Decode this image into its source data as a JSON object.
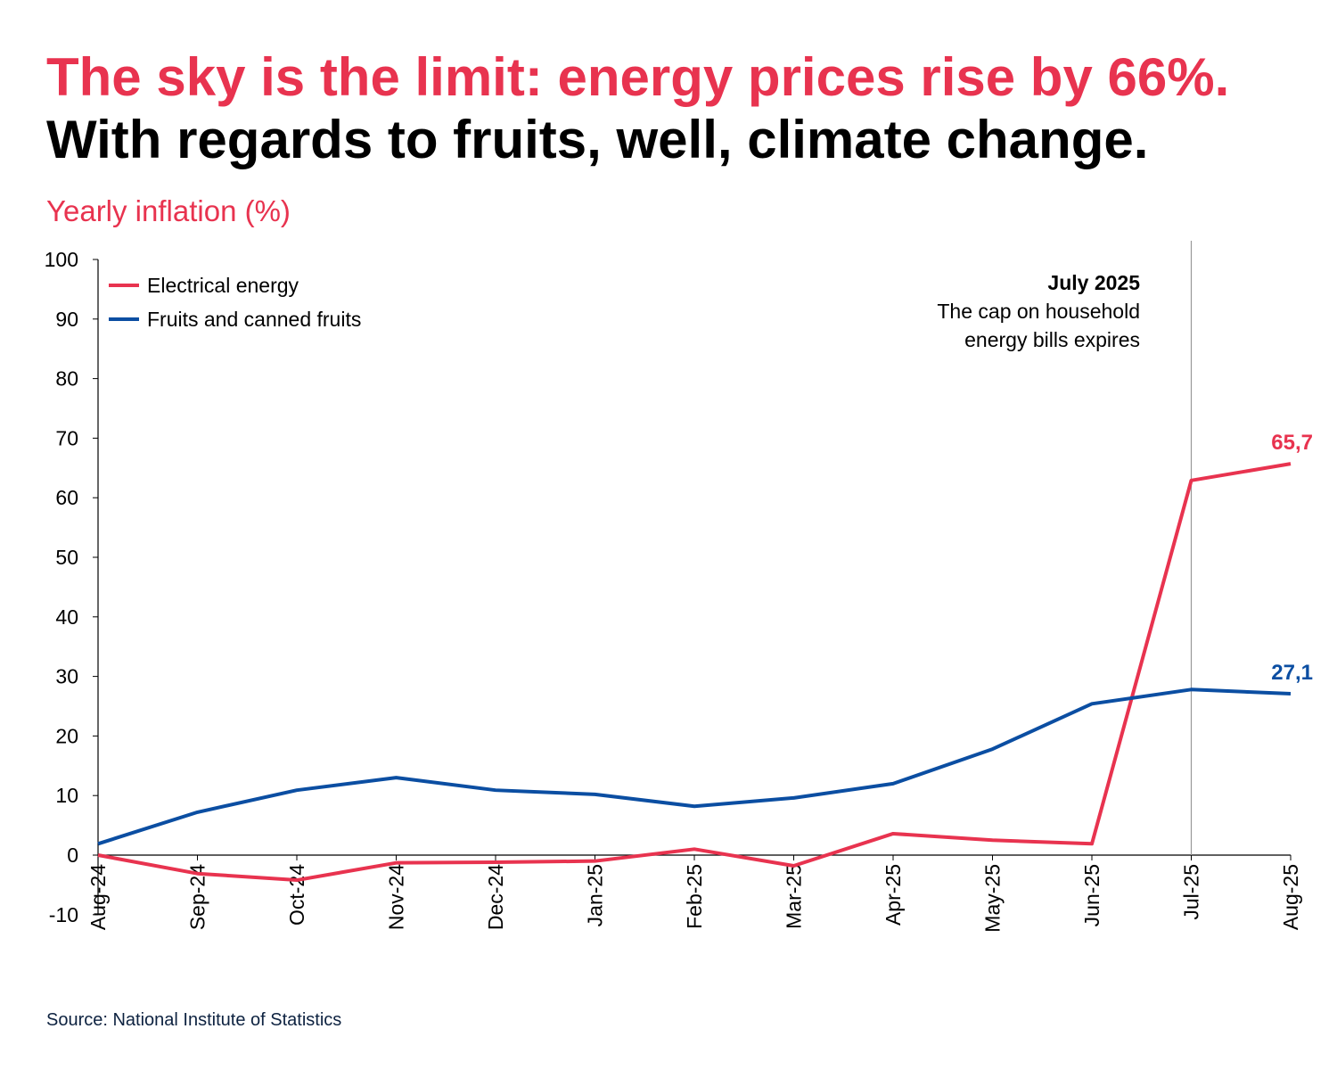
{
  "title_line1": "The sky is the limit: energy prices rise by 66%.",
  "title_line2": "With regards to fruits, well, climate change.",
  "source": "Source: National Institute of Statistics",
  "colors": {
    "energy": "#e8334f",
    "fruits": "#0b4ea2"
  },
  "chart_data": {
    "type": "line",
    "ylabel": "Yearly inflation (%)",
    "ylim": [
      -10,
      100
    ],
    "yticks": [
      "-10",
      "0",
      "10",
      "20",
      "30",
      "40",
      "50",
      "60",
      "70",
      "80",
      "90",
      "100"
    ],
    "categories": [
      "Aug-24",
      "Sep-24",
      "Oct-24",
      "Nov-24",
      "Dec-24",
      "Jan-25",
      "Feb-25",
      "Mar-25",
      "Apr-25",
      "May-25",
      "Jun-25",
      "Jul-25",
      "Aug-25"
    ],
    "legend_position": "top-left",
    "series": [
      {
        "name": "Electrical energy",
        "values": [
          0,
          -3.1,
          -4.2,
          -1.3,
          -1.2,
          -1.0,
          1.0,
          -1.8,
          3.6,
          2.5,
          1.9,
          62.9,
          65.7
        ],
        "end_label": "65,7"
      },
      {
        "name": "Fruits and canned fruits",
        "values": [
          1.9,
          7.2,
          10.9,
          13.0,
          10.9,
          10.2,
          8.2,
          9.6,
          12.0,
          17.8,
          25.4,
          27.8,
          27.1
        ],
        "end_label": "27,1"
      }
    ],
    "annotation": {
      "category": "Jul-25",
      "title": "July 2025",
      "lines": [
        "The  cap on household",
        "energy bills expires"
      ]
    }
  }
}
